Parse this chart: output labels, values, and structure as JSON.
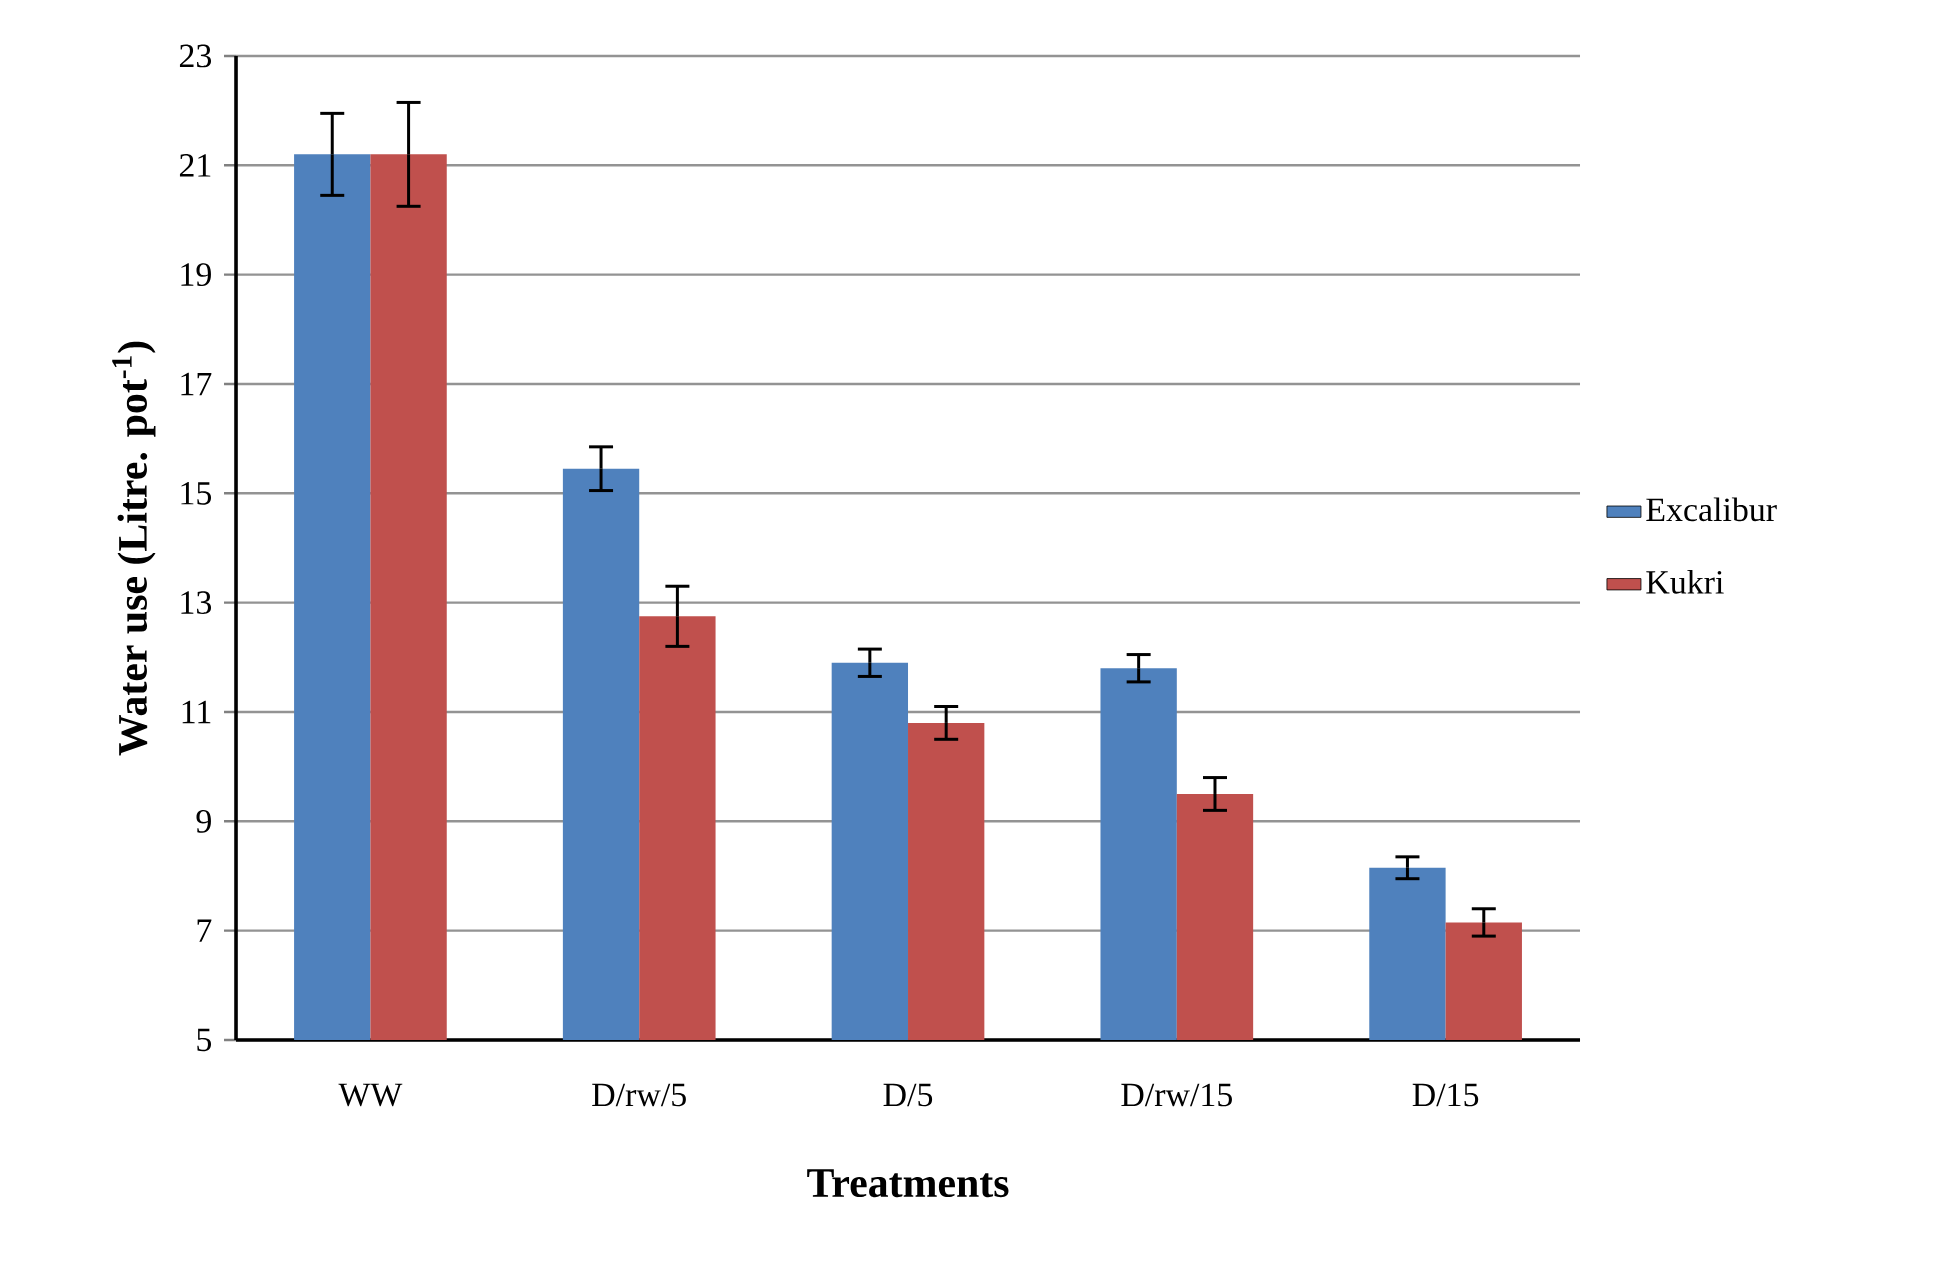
{
  "chart_data": {
    "type": "bar",
    "xlabel": "Treatments",
    "ylabel": "Water use (Litre. pot$^{-1}$)",
    "categories": [
      "WW",
      "D/rw/5",
      "D/5",
      "D/rw/15",
      "D/15"
    ],
    "series": [
      {
        "name": "Excalibur",
        "color": "#4f81bd",
        "values": [
          21.2,
          15.45,
          11.9,
          11.8,
          8.15
        ],
        "errors": [
          0.75,
          0.4,
          0.25,
          0.25,
          0.2
        ]
      },
      {
        "name": "Kukri",
        "color": "#c0504d",
        "values": [
          21.2,
          12.75,
          10.8,
          9.5,
          7.15
        ],
        "errors": [
          0.95,
          0.55,
          0.3,
          0.3,
          0.25
        ]
      }
    ],
    "ylim": [
      5,
      23
    ],
    "yticks": [
      5,
      7,
      9,
      11,
      13,
      15,
      17,
      19,
      21,
      23
    ],
    "grid": "y",
    "legend": "right"
  }
}
